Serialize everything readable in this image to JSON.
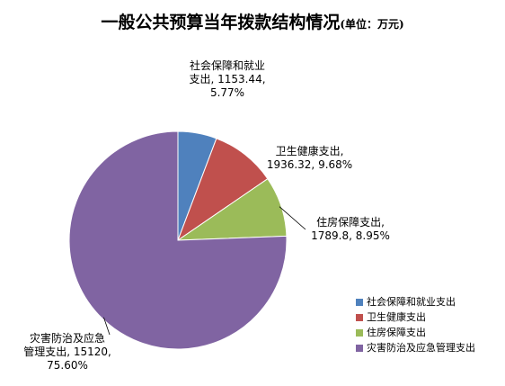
{
  "chart_data": {
    "type": "pie",
    "title": "一般公共预算当年拨款结构情况",
    "subtitle": "(单位：万元)",
    "slices": [
      {
        "name": "社会保障和就业支出",
        "value": 1153.44,
        "percent": "5.77%",
        "color": "#4F81BD",
        "label_lines": [
          "社会保障和就业",
          "支出, 1153.44,",
          "5.77%"
        ]
      },
      {
        "name": "卫生健康支出",
        "value": 1936.32,
        "percent": "9.68%",
        "color": "#C0504D",
        "label_lines": [
          "卫生健康支出,",
          "1936.32, 9.68%"
        ]
      },
      {
        "name": "住房保障支出",
        "value": 1789.8,
        "percent": "8.95%",
        "color": "#9BBB59",
        "label_lines": [
          "住房保障支出,",
          "1789.8, 8.95%"
        ]
      },
      {
        "name": "灾害防治及应急管理支出",
        "value": 15120,
        "percent": "75.60%",
        "color": "#8064A2",
        "label_lines": [
          "灾害防治及应急",
          "管理支出, 15120,",
          "75.60%"
        ]
      }
    ],
    "legend": {
      "position": "bottom-right",
      "items": [
        "社会保障和就业支出",
        "卫生健康支出",
        "住房保障支出",
        "灾害防治及应急管理支出"
      ]
    }
  }
}
